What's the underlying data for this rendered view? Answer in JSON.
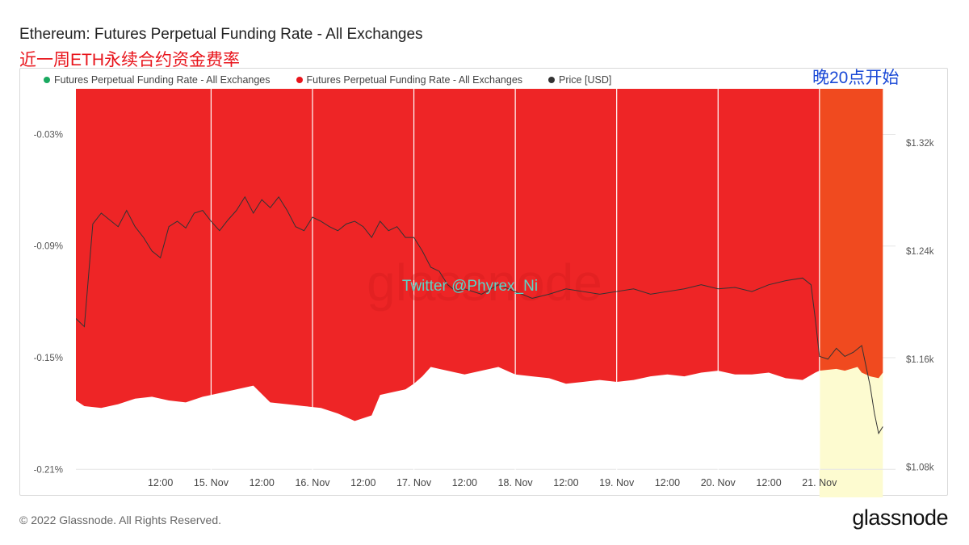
{
  "header": {
    "title": "Ethereum: Futures Perpetual Funding Rate - All Exchanges",
    "subtitle": "近一周ETH永续合约资金费率"
  },
  "annotation": {
    "highlight_label": "晚20点开始",
    "watermark_text": "Twitter @Phyrex_Ni"
  },
  "legend": {
    "items": [
      {
        "label": "Futures Perpetual Funding Rate - All Exchanges",
        "color": "#1aa960"
      },
      {
        "label": "Futures Perpetual Funding Rate - All Exchanges",
        "color": "#e8141b"
      },
      {
        "label": "Price [USD]",
        "color": "#333333"
      }
    ]
  },
  "footer": {
    "copyright": "© 2022 Glassnode. All Rights Reserved.",
    "brand": "glassnode"
  },
  "colors": {
    "negative_fill": "#ee2526",
    "highlight_fill": "#f04a1f",
    "highlight_band": "#fdfbd0",
    "price_line": "#333333"
  },
  "chart_data": {
    "type": "area",
    "x_tick_labels": [
      "12:00",
      "15. Nov",
      "12:00",
      "16. Nov",
      "12:00",
      "17. Nov",
      "12:00",
      "18. Nov",
      "12:00",
      "19. Nov",
      "12:00",
      "20. Nov",
      "12:00",
      "21. Nov"
    ],
    "x_range_hours": [
      -20,
      174
    ],
    "x_tick_hours": [
      12,
      24,
      36,
      48,
      60,
      72,
      84,
      96,
      108,
      120,
      132,
      144,
      156,
      168
    ],
    "highlight_range_hours": [
      156,
      171
    ],
    "y_left": {
      "label": "",
      "tick_labels": [
        "-0.03%",
        "-0.09%",
        "-0.15%",
        "-0.21%"
      ],
      "ticks": [
        -0.03,
        -0.09,
        -0.15,
        -0.21
      ],
      "range": [
        -0.2103,
        -0.0055
      ]
    },
    "y_right": {
      "label": "",
      "tick_labels": [
        "$1.32k",
        "$1.24k",
        "$1.16k",
        "$1.08k"
      ],
      "ticks": [
        1320,
        1240,
        1160,
        1080
      ],
      "range": [
        1078,
        1360
      ]
    },
    "series": [
      {
        "name": "Futures Perpetual Funding Rate - All Exchanges",
        "kind": "area",
        "axis": "left",
        "x": [
          -20,
          -18,
          -14,
          -10,
          -6,
          -2,
          2,
          6,
          10,
          14,
          18,
          22,
          26,
          30,
          34,
          38,
          42,
          46,
          50,
          52,
          56,
          58,
          60,
          62,
          64,
          66,
          70,
          72,
          76,
          80,
          84,
          88,
          92,
          96,
          100,
          104,
          108,
          112,
          116,
          120,
          124,
          128,
          132,
          136,
          140,
          144,
          148,
          152,
          155,
          156,
          160,
          162,
          165,
          166,
          168,
          170,
          171
        ],
        "y": [
          -0.173,
          -0.176,
          -0.177,
          -0.175,
          -0.172,
          -0.171,
          -0.173,
          -0.174,
          -0.171,
          -0.169,
          -0.167,
          -0.165,
          -0.174,
          -0.175,
          -0.176,
          -0.177,
          -0.18,
          -0.184,
          -0.181,
          -0.17,
          -0.168,
          -0.167,
          -0.164,
          -0.16,
          -0.155,
          -0.156,
          -0.158,
          -0.159,
          -0.157,
          -0.155,
          -0.159,
          -0.16,
          -0.161,
          -0.164,
          -0.163,
          -0.162,
          -0.163,
          -0.162,
          -0.16,
          -0.159,
          -0.16,
          -0.158,
          -0.157,
          -0.159,
          -0.159,
          -0.158,
          -0.161,
          -0.162,
          -0.158,
          -0.157,
          -0.156,
          -0.157,
          -0.155,
          -0.158,
          -0.16,
          -0.161,
          -0.158
        ]
      },
      {
        "name": "Price [USD]",
        "kind": "line",
        "axis": "right",
        "x": [
          -20,
          -18,
          -16,
          -14,
          -12,
          -10,
          -8,
          -6,
          -4,
          -2,
          0,
          2,
          4,
          6,
          8,
          10,
          12,
          14,
          16,
          18,
          20,
          22,
          24,
          26,
          28,
          30,
          32,
          34,
          36,
          38,
          40,
          42,
          44,
          46,
          48,
          50,
          52,
          54,
          56,
          58,
          60,
          62,
          64,
          66,
          68,
          70,
          72,
          76,
          80,
          84,
          88,
          92,
          96,
          100,
          104,
          108,
          112,
          116,
          120,
          124,
          128,
          132,
          136,
          140,
          144,
          148,
          152,
          154,
          155,
          156,
          158,
          160,
          162,
          164,
          166,
          168,
          169,
          170,
          171
        ],
        "y": [
          1190,
          1184,
          1260,
          1268,
          1263,
          1258,
          1270,
          1258,
          1250,
          1240,
          1235,
          1258,
          1262,
          1257,
          1268,
          1270,
          1262,
          1255,
          1263,
          1270,
          1280,
          1268,
          1278,
          1272,
          1280,
          1270,
          1258,
          1255,
          1265,
          1262,
          1258,
          1255,
          1260,
          1262,
          1258,
          1250,
          1262,
          1255,
          1258,
          1250,
          1250,
          1240,
          1228,
          1225,
          1215,
          1210,
          1212,
          1208,
          1215,
          1210,
          1205,
          1208,
          1212,
          1210,
          1208,
          1210,
          1212,
          1208,
          1210,
          1212,
          1215,
          1212,
          1213,
          1210,
          1215,
          1218,
          1220,
          1215,
          1190,
          1162,
          1160,
          1168,
          1162,
          1165,
          1170,
          1140,
          1120,
          1105,
          1110
        ]
      }
    ]
  }
}
